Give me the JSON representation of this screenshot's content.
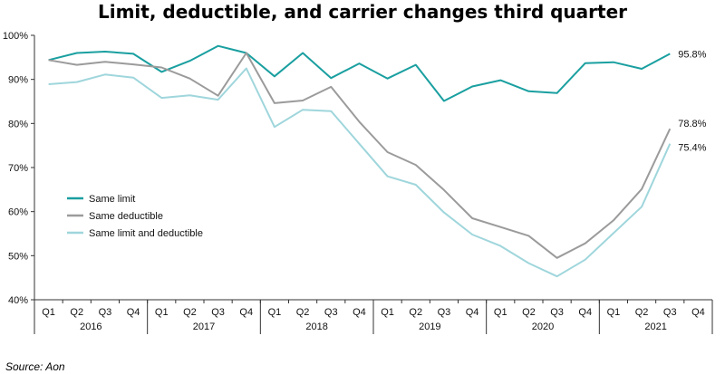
{
  "chart_data": {
    "type": "line",
    "title": "Limit, deductible, and carrier changes third quarter",
    "source": "Source: Aon",
    "quarters": [
      "Q1",
      "Q2",
      "Q3",
      "Q4",
      "Q1",
      "Q2",
      "Q3",
      "Q4",
      "Q1",
      "Q2",
      "Q3",
      "Q4",
      "Q1",
      "Q2",
      "Q3",
      "Q4",
      "Q1",
      "Q2",
      "Q3",
      "Q4",
      "Q1",
      "Q2",
      "Q3",
      "Q4"
    ],
    "years": [
      "2016",
      "2017",
      "2018",
      "2019",
      "2020",
      "2021"
    ],
    "yticks": [
      "40%",
      "50%",
      "60%",
      "70%",
      "80%",
      "90%",
      "100%"
    ],
    "ylim": [
      40,
      100
    ],
    "series": [
      {
        "name": "Same limit",
        "color": "#1a9fa0",
        "values": [
          94.4,
          96.0,
          96.3,
          95.8,
          91.7,
          94.2,
          97.6,
          96.0,
          90.7,
          96.0,
          90.3,
          93.6,
          90.2,
          93.3,
          85.1,
          88.4,
          89.8,
          87.3,
          86.9,
          93.7,
          93.9,
          92.4,
          95.8,
          null
        ],
        "end_label": "95.8%"
      },
      {
        "name": "Same deductible",
        "color": "#9b9b9b",
        "values": [
          94.4,
          93.3,
          94.0,
          93.4,
          92.7,
          90.2,
          86.3,
          96.0,
          84.6,
          85.2,
          88.3,
          80.4,
          73.5,
          70.6,
          64.9,
          58.5,
          56.5,
          54.5,
          49.5,
          52.8,
          58.0,
          65.1,
          78.8,
          null
        ],
        "end_label": "78.8%"
      },
      {
        "name": "Same limit and deductible",
        "color": "#9fd6dc",
        "values": [
          88.9,
          89.4,
          91.1,
          90.4,
          85.8,
          86.4,
          85.4,
          92.5,
          79.2,
          83.1,
          82.8,
          75.4,
          68.0,
          66.1,
          59.8,
          54.8,
          52.2,
          48.3,
          45.3,
          49.1,
          55.1,
          61.1,
          75.4,
          null
        ],
        "end_label": "75.4%"
      }
    ]
  }
}
